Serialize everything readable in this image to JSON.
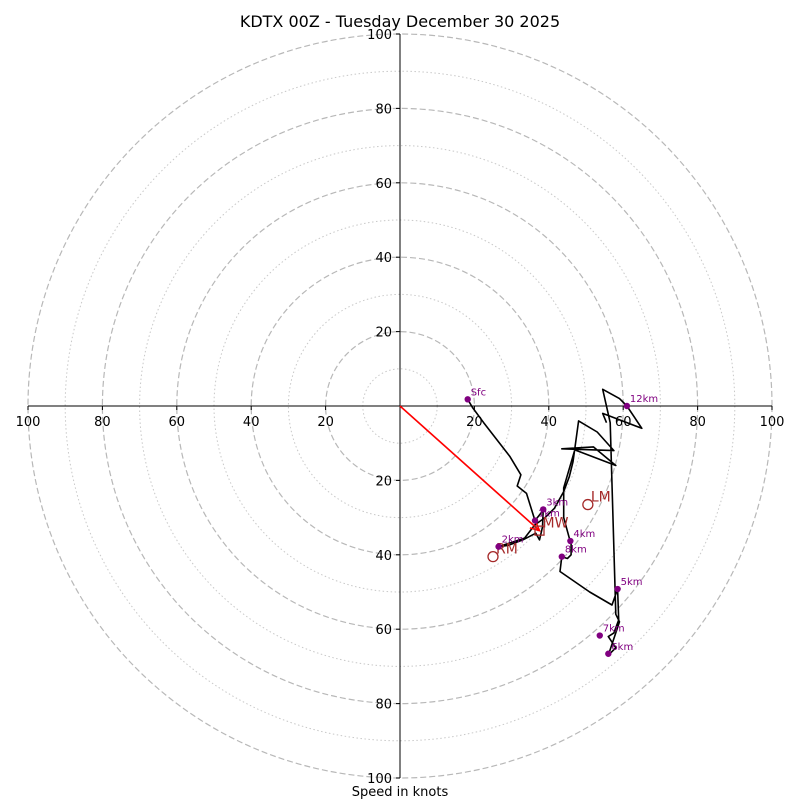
{
  "chart_data": {
    "type": "hodograph",
    "title": "KDTX 00Z - Tuesday December 30 2025",
    "xlabel": "Speed in knots",
    "units": "knots",
    "range": [
      -100,
      100
    ],
    "rings_major": [
      20,
      40,
      60,
      80,
      100
    ],
    "rings_minor": [
      10,
      30,
      50,
      70,
      90
    ],
    "tick_labels_x": [
      "100",
      "80",
      "60",
      "40",
      "20",
      "20",
      "40",
      "60",
      "80",
      "100"
    ],
    "tick_labels_y_top": [
      "100",
      "80",
      "60",
      "40",
      "20"
    ],
    "tick_labels_y_bottom": [
      "20",
      "40",
      "60",
      "80",
      "100"
    ],
    "trace": {
      "color": "#000000",
      "points": [
        [
          18.2,
          1.8
        ],
        [
          19.5,
          -0.4
        ],
        [
          22.5,
          -4.5
        ],
        [
          26.0,
          -9.0
        ],
        [
          29.5,
          -13.5
        ],
        [
          32.5,
          -18.5
        ],
        [
          31.5,
          -21.5
        ],
        [
          34.0,
          -23.5
        ],
        [
          36.3,
          -30.8
        ],
        [
          38.5,
          -28.0
        ],
        [
          38.3,
          -32.5
        ],
        [
          37.5,
          -36.0
        ],
        [
          36.5,
          -34.2
        ],
        [
          33.0,
          -36.0
        ],
        [
          29.0,
          -37.5
        ],
        [
          26.5,
          -37.8
        ],
        [
          30.5,
          -36.5
        ],
        [
          33.5,
          -35.5
        ],
        [
          36.2,
          -32.0
        ],
        [
          39.0,
          -30.0
        ],
        [
          41.5,
          -27.5
        ],
        [
          44.0,
          -23.0
        ],
        [
          45.5,
          -19.0
        ],
        [
          46.5,
          -15.0
        ],
        [
          48.0,
          -4.0
        ],
        [
          53.0,
          -7.0
        ],
        [
          57.5,
          -12.0
        ],
        [
          43.5,
          -11.5
        ],
        [
          52.0,
          -11.0
        ],
        [
          58.0,
          -16.0
        ],
        [
          47.0,
          -11.8
        ],
        [
          44.0,
          -22.0
        ],
        [
          44.0,
          -30.0
        ],
        [
          45.5,
          -35.5
        ],
        [
          46.0,
          -36.3
        ],
        [
          46.0,
          -40.0
        ],
        [
          45.0,
          -41.0
        ],
        [
          43.5,
          -40.5
        ],
        [
          43.0,
          -44.5
        ],
        [
          51.0,
          -50.0
        ],
        [
          57.0,
          -53.5
        ],
        [
          58.5,
          -49.2
        ],
        [
          58.8,
          -57.5
        ],
        [
          57.5,
          -61.0
        ],
        [
          56.0,
          -62.0
        ],
        [
          58.0,
          -65.0
        ],
        [
          56.0,
          -67.0
        ],
        [
          59.0,
          -58.0
        ],
        [
          58.0,
          -56.0
        ],
        [
          56.5,
          -4.5
        ],
        [
          54.5,
          4.5
        ],
        [
          59.0,
          2.0
        ],
        [
          61.0,
          0.0
        ],
        [
          65.0,
          -6.0
        ],
        [
          54.5,
          -2.0
        ],
        [
          55.5,
          -4.5
        ]
      ]
    },
    "height_markers": {
      "color": "#800080",
      "points": [
        {
          "label": "Sfc",
          "u": 18.2,
          "v": 1.8
        },
        {
          "label": "1km",
          "u": 36.3,
          "v": -30.8
        },
        {
          "label": "2km",
          "u": 26.5,
          "v": -37.8
        },
        {
          "label": "3km",
          "u": 38.5,
          "v": -27.8
        },
        {
          "label": "4km",
          "u": 45.8,
          "v": -36.3
        },
        {
          "label": "5km",
          "u": 58.5,
          "v": -49.2
        },
        {
          "label": "6km",
          "u": 56.0,
          "v": -66.6
        },
        {
          "label": "7km",
          "u": 53.7,
          "v": -61.7
        },
        {
          "label": "8km",
          "u": 43.5,
          "v": -40.5
        },
        {
          "label": "12km",
          "u": 61.0,
          "v": 0.0
        }
      ]
    },
    "motions": {
      "color": "#a52a2a",
      "items": [
        {
          "label": "LM",
          "u": 50.5,
          "v": -26.5,
          "marker": "circle"
        },
        {
          "label": "RM",
          "u": 25.0,
          "v": -40.5,
          "marker": "circle"
        },
        {
          "label": "MW",
          "u": 37.5,
          "v": -33.5,
          "marker": "square"
        }
      ]
    },
    "shear_vector": {
      "color": "#ff0000",
      "from": [
        0,
        0
      ],
      "to": [
        37.5,
        -33.5
      ]
    }
  }
}
